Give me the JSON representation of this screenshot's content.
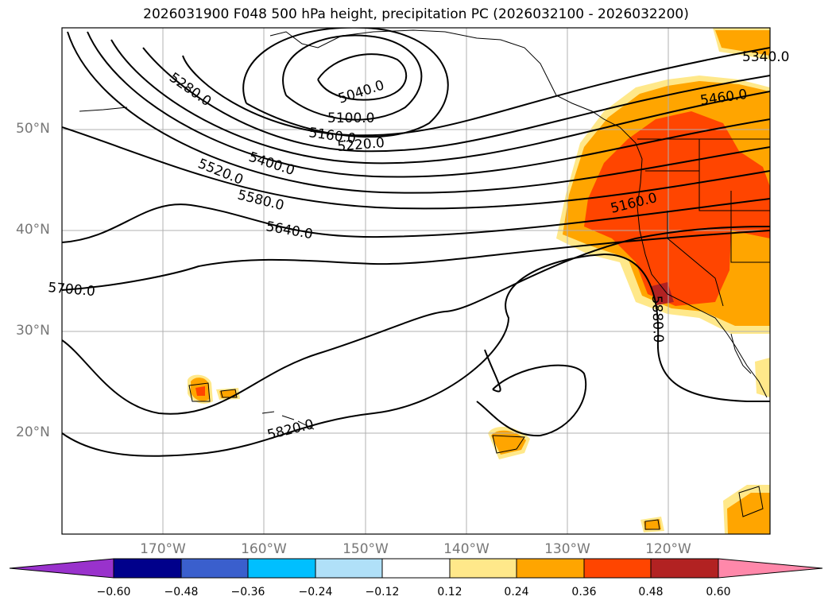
{
  "title": "2026031900 F048 500 hPa height, precipitation PC (2026032100 - 2026032200)",
  "map": {
    "lat_labels": [
      "50°N",
      "40°N",
      "30°N",
      "20°N"
    ],
    "lon_labels": [
      "170°W",
      "160°W",
      "150°W",
      "140°W",
      "130°W",
      "120°W"
    ],
    "contour_labels": [
      "5280.0",
      "5040.0",
      "5100.0",
      "5160.0",
      "5220.0",
      "5400.0",
      "5520.0",
      "5580.0",
      "5640.0",
      "5700.0",
      "5820.0",
      "5880.0",
      "5460.0",
      "5160.0",
      "5340.0"
    ]
  },
  "colorbar": {
    "tick_labels": [
      "−0.60",
      "−0.48",
      "−0.36",
      "−0.24",
      "−0.12",
      "0.12",
      "0.24",
      "0.36",
      "0.48",
      "0.60"
    ],
    "colors": [
      "#9932cc",
      "#00008b",
      "#3a5fcd",
      "#00bfff",
      "#b0e0f8",
      "#ffffff",
      "#ffe88a",
      "#ffa500",
      "#ff4500",
      "#b22222",
      "#ff88aa"
    ]
  }
}
